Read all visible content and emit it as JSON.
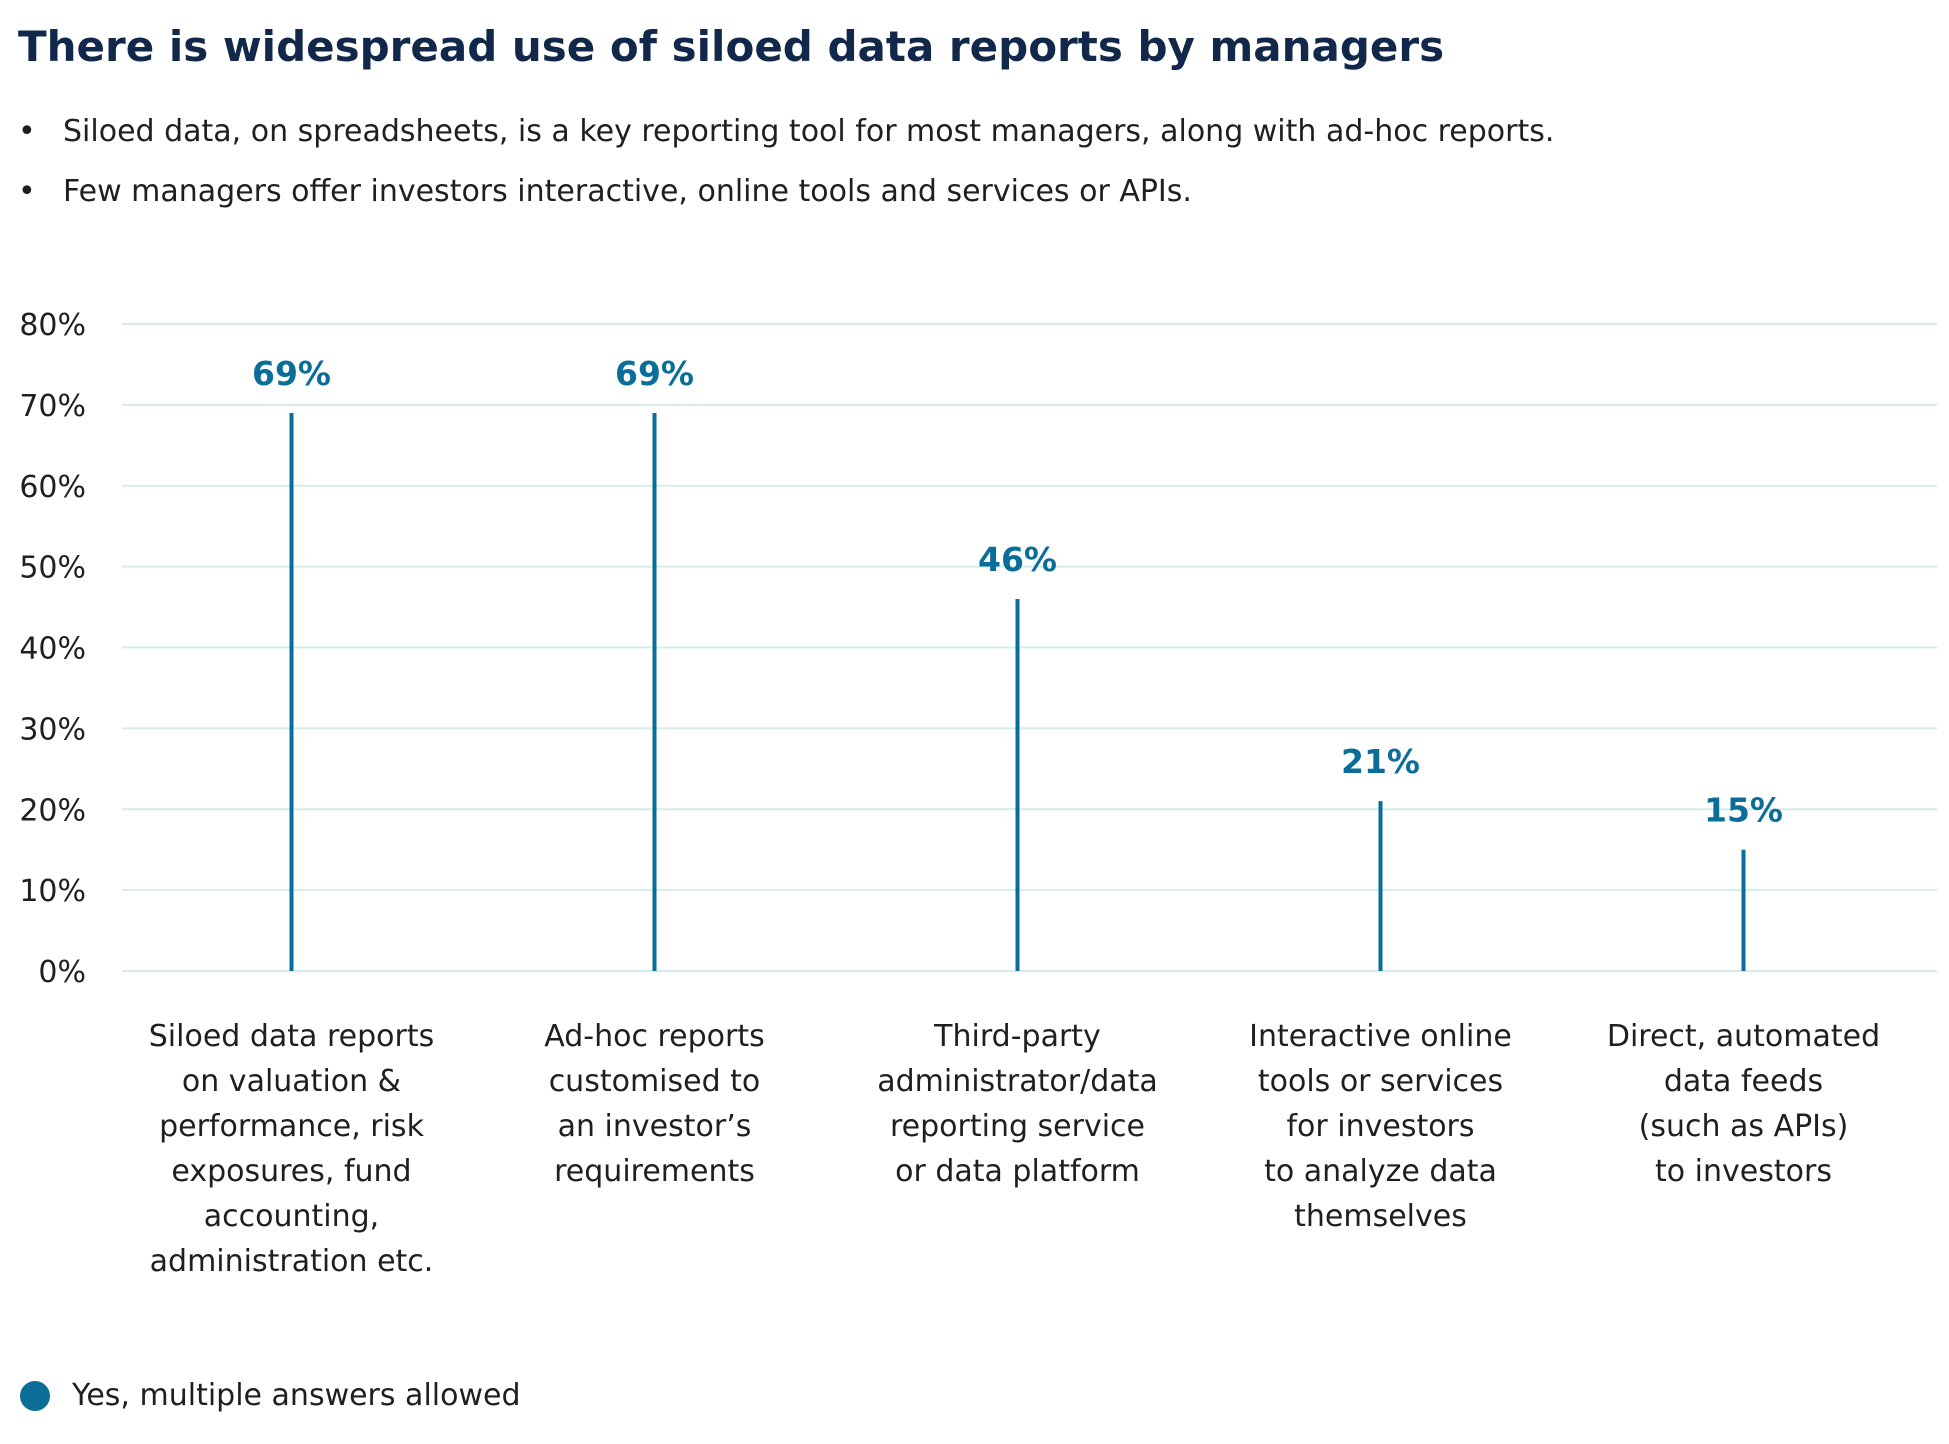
{
  "title": "There is widespread use of siloed data reports by managers",
  "bullets": [
    "Siloed data, on spreadsheets, is a key reporting tool for most managers, along with ad-hoc reports.",
    "Few managers offer investors interactive, online tools and services or APIs."
  ],
  "bullet_symbol": "•",
  "legend": {
    "label": "Yes, multiple answers allowed",
    "color": "#0b6e99"
  },
  "colors": {
    "bar": "#0b6e99",
    "label": "#0b6e99",
    "grid": "#d6ecec",
    "title": "#12284b"
  },
  "chart_data": {
    "type": "bar",
    "title": "",
    "xlabel": "",
    "ylabel": "",
    "ylim": [
      0,
      80
    ],
    "y_ticks": [
      "0%",
      "10%",
      "20%",
      "30%",
      "40%",
      "50%",
      "60%",
      "70%",
      "80%"
    ],
    "grid": true,
    "legend_position": "bottom-left",
    "categories": [
      [
        "Siloed data reports",
        "on valuation &",
        "performance, risk",
        "exposures, fund",
        "accounting,",
        "administration etc."
      ],
      [
        "Ad-hoc reports",
        "customised to",
        "an investor’s",
        "requirements"
      ],
      [
        "Third-party",
        "administrator/data",
        "reporting service",
        "or data platform"
      ],
      [
        "Interactive online",
        "tools or services",
        "for investors",
        "to analyze data",
        "themselves"
      ],
      [
        "Direct, automated",
        "data feeds",
        "(such as APIs)",
        "to investors"
      ]
    ],
    "series": [
      {
        "name": "Yes, multiple answers allowed",
        "values": [
          69,
          69,
          46,
          21,
          15
        ],
        "labels": [
          "69%",
          "69%",
          "46%",
          "21%",
          "15%"
        ]
      }
    ]
  }
}
